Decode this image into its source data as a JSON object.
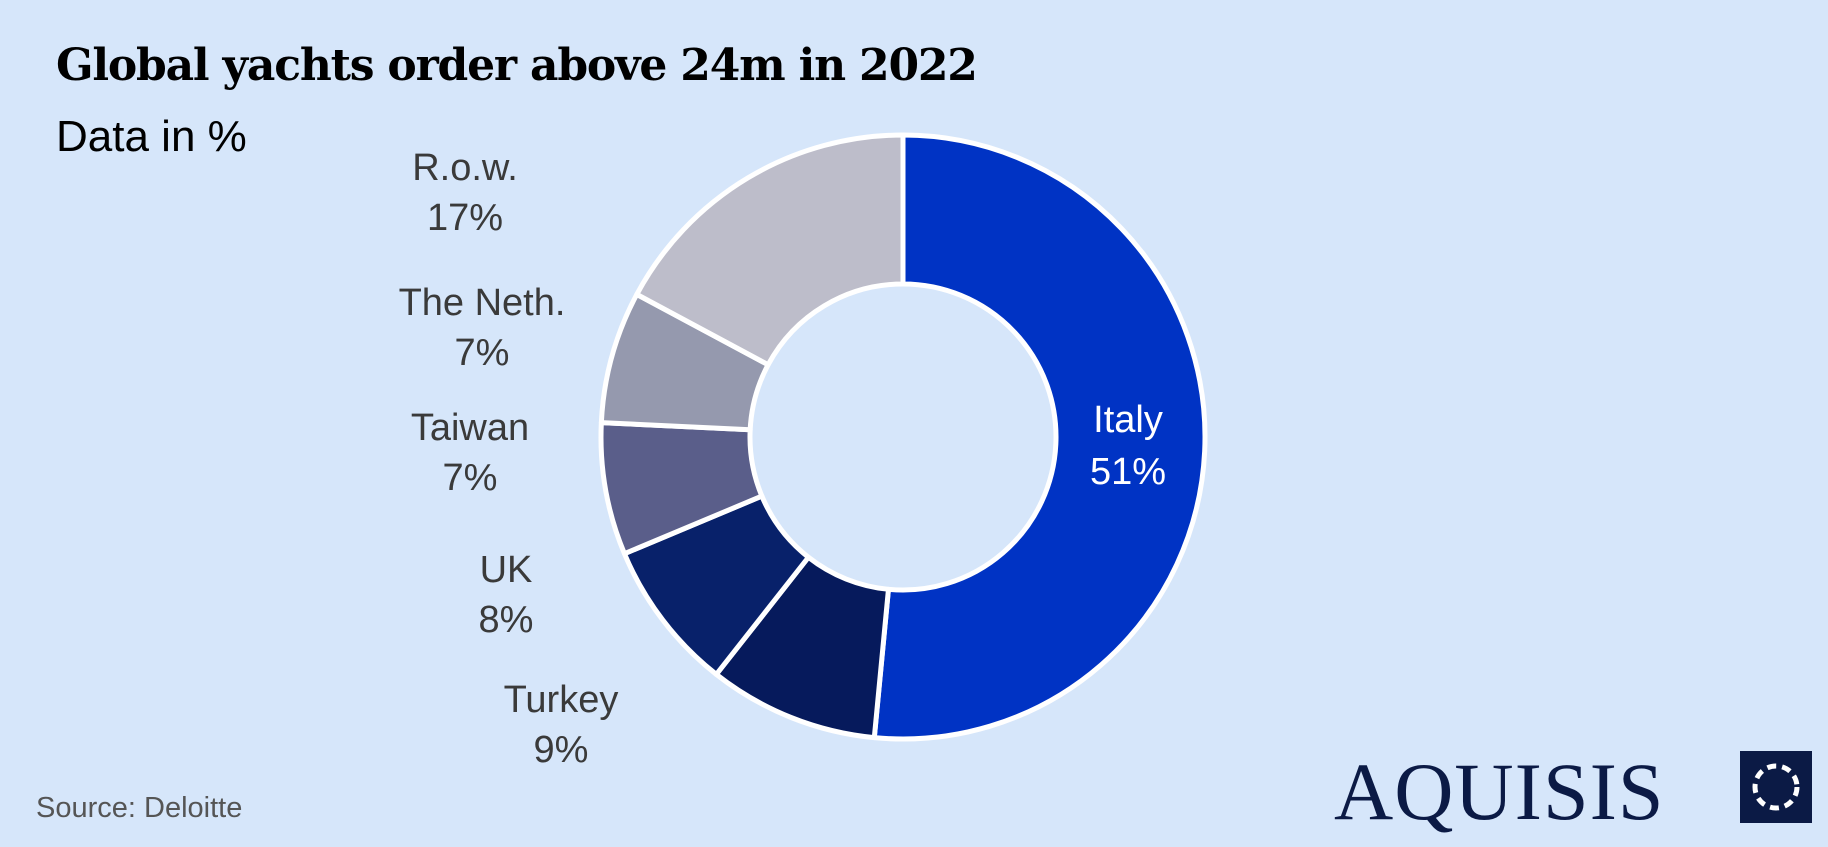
{
  "header": {
    "title": "Global yachts order above 24m in 2022",
    "subtitle": "Data in %"
  },
  "footer": {
    "source": "Source: Deloitte",
    "brand": "AQUISIS"
  },
  "colors": {
    "background": "#d6e6fa",
    "italy": "#0033c4",
    "turkey": "#061a5c",
    "uk": "#08216a",
    "taiwan": "#5a5e8a",
    "netherlands": "#9599ae",
    "row": "#bdbdca",
    "brand": "#0b1a45"
  },
  "chart_data": {
    "type": "pie",
    "variant": "donut",
    "title": "Global yachts order above 24m in 2022",
    "subtitle": "Data in %",
    "unit": "%",
    "categories": [
      "Italy",
      "Turkey",
      "UK",
      "Taiwan",
      "The Neth.",
      "R.o.w."
    ],
    "values": [
      51,
      9,
      8,
      7,
      7,
      17
    ],
    "labels": [
      "51%",
      "9%",
      "8%",
      "7%",
      "7%",
      "17%"
    ],
    "start": "12 o'clock, clockwise",
    "legend": "none (labels beside slices)"
  }
}
